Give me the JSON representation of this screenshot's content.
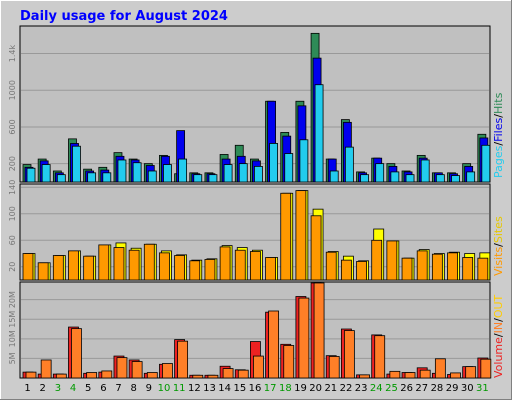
{
  "title": "Daily usage for August 2024",
  "colors": {
    "frame_bg": "#cccccc",
    "plot_bg": "#c0c0c0",
    "title": "#0000ff",
    "hits": "#2e8b57",
    "files": "#0000ee",
    "pages": "#22ccee",
    "visits": "#ff9900",
    "sites": "#ffff00",
    "kbytes": "#ee2222",
    "kb_in": "#ff7f27",
    "kb_out": "#ffcc00",
    "weekend_day": "#009900",
    "weekday": "#000000",
    "grid": "#999999"
  },
  "legend": {
    "panel1": {
      "pages": "Pages",
      "sep1": "/",
      "files": "Files",
      "sep2": "/",
      "hits": "Hits"
    },
    "panel2": {
      "visits": "Visits",
      "sep1": "/",
      "sites": "Sites"
    },
    "panel3": {
      "volume": "Volume",
      "sep1": "/",
      "in": "IN",
      "sep2": "/",
      "out": "OUT"
    }
  },
  "chart_data": [
    {
      "type": "bar",
      "panel": "hits-files-pages",
      "categories": [
        "1",
        "2",
        "3",
        "4",
        "5",
        "6",
        "7",
        "8",
        "9",
        "10",
        "11",
        "12",
        "13",
        "14",
        "15",
        "16",
        "17",
        "18",
        "19",
        "20",
        "21",
        "22",
        "23",
        "24",
        "25",
        "26",
        "27",
        "28",
        "29",
        "30",
        "31"
      ],
      "weekend_days": [
        3,
        4,
        10,
        11,
        17,
        18,
        24,
        25,
        31
      ],
      "ylim": [
        0,
        1700
      ],
      "yticks": [
        200,
        600,
        1000,
        1400
      ],
      "ytick_labels": [
        "200",
        "600",
        "1000",
        "1.4k"
      ],
      "series": [
        {
          "name": "Hits",
          "values": [
            190,
            250,
            120,
            470,
            140,
            160,
            320,
            250,
            200,
            290,
            90,
            100,
            100,
            300,
            400,
            250,
            880,
            540,
            880,
            1620,
            250,
            680,
            110,
            260,
            200,
            120,
            290,
            100,
            100,
            200,
            520
          ]
        },
        {
          "name": "Files",
          "values": [
            160,
            230,
            100,
            420,
            120,
            130,
            280,
            240,
            180,
            280,
            560,
            90,
            90,
            250,
            280,
            230,
            880,
            500,
            830,
            1350,
            250,
            650,
            100,
            260,
            170,
            110,
            260,
            100,
            90,
            170,
            480
          ]
        },
        {
          "name": "Pages",
          "values": [
            150,
            190,
            80,
            390,
            100,
            100,
            240,
            210,
            120,
            190,
            250,
            80,
            80,
            190,
            200,
            170,
            420,
            310,
            460,
            1060,
            120,
            380,
            80,
            200,
            110,
            80,
            240,
            80,
            70,
            110,
            400
          ]
        }
      ]
    },
    {
      "type": "bar",
      "panel": "visits-sites",
      "categories": [
        "1",
        "2",
        "3",
        "4",
        "5",
        "6",
        "7",
        "8",
        "9",
        "10",
        "11",
        "12",
        "13",
        "14",
        "15",
        "16",
        "17",
        "18",
        "19",
        "20",
        "21",
        "22",
        "23",
        "24",
        "25",
        "26",
        "27",
        "28",
        "29",
        "30",
        "31"
      ],
      "ylim": [
        0,
        145
      ],
      "yticks": [
        20,
        60,
        100,
        140
      ],
      "ytick_labels": [
        "20",
        "60",
        "100",
        "140"
      ],
      "series": [
        {
          "name": "Sites",
          "values": [
            40,
            26,
            37,
            44,
            36,
            53,
            56,
            48,
            54,
            44,
            38,
            30,
            32,
            52,
            49,
            45,
            34,
            131,
            135,
            107,
            43,
            36,
            29,
            77,
            59,
            33,
            46,
            40,
            42,
            40,
            41
          ]
        },
        {
          "name": "Visits",
          "values": [
            40,
            26,
            37,
            44,
            36,
            53,
            49,
            45,
            54,
            41,
            37,
            29,
            31,
            50,
            45,
            43,
            34,
            131,
            135,
            97,
            42,
            30,
            28,
            60,
            59,
            33,
            44,
            39,
            41,
            34,
            33
          ]
        }
      ]
    },
    {
      "type": "bar",
      "panel": "volume",
      "categories": [
        "1",
        "2",
        "3",
        "4",
        "5",
        "6",
        "7",
        "8",
        "9",
        "10",
        "11",
        "12",
        "13",
        "14",
        "15",
        "16",
        "17",
        "18",
        "19",
        "20",
        "21",
        "22",
        "23",
        "24",
        "25",
        "26",
        "27",
        "28",
        "29",
        "30",
        "31"
      ],
      "ylim": [
        0,
        24.5
      ],
      "ytick_values": [
        5,
        10,
        15,
        20
      ],
      "ytick_labels": [
        "5M",
        "10M",
        "15M",
        "20M"
      ],
      "series": [
        {
          "name": "Volume",
          "values": [
            1.5,
            1.0,
            1.0,
            13.0,
            1.2,
            1.5,
            5.6,
            4.6,
            1.2,
            3.5,
            9.8,
            0.7,
            0.7,
            3.0,
            2.1,
            9.3,
            16.8,
            8.6,
            20.8,
            26.4,
            5.7,
            12.5,
            0.8,
            11.0,
            1.0,
            1.4,
            2.6,
            1.2,
            0.9,
            2.9,
            5.1
          ]
        },
        {
          "name": "IN",
          "values": [
            1.5,
            4.6,
            1.0,
            12.6,
            1.4,
            1.8,
            5.2,
            4.2,
            1.4,
            3.7,
            9.4,
            0.7,
            0.7,
            2.4,
            2.0,
            5.6,
            17.1,
            8.3,
            20.4,
            25.3,
            5.5,
            12.1,
            0.8,
            10.8,
            1.7,
            1.4,
            2.0,
            4.9,
            1.3,
            2.9,
            4.8
          ]
        },
        {
          "name": "OUT",
          "values": [
            0,
            0,
            0,
            0,
            0,
            0,
            0,
            0,
            0,
            0,
            0,
            0,
            0,
            0,
            0,
            0,
            0,
            0,
            0,
            0,
            0,
            0,
            0,
            0,
            0,
            0,
            0,
            0,
            0,
            0,
            0
          ]
        }
      ]
    }
  ]
}
